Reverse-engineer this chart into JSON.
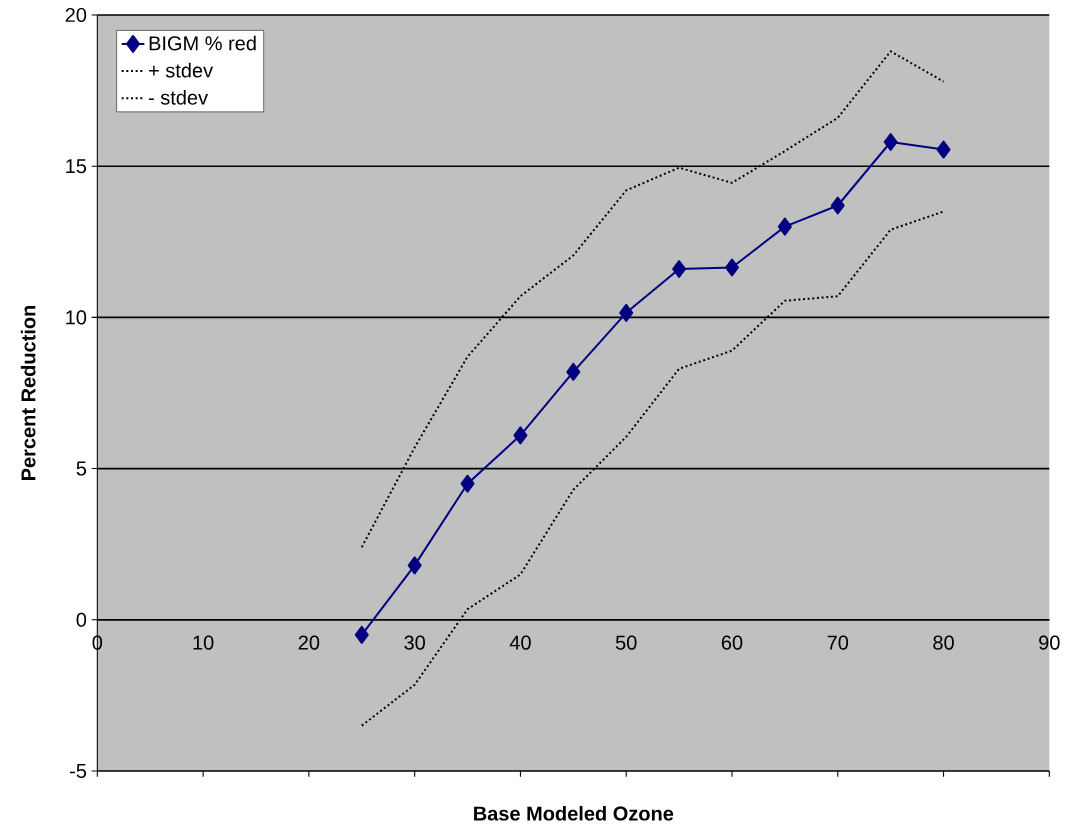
{
  "chart_data": {
    "type": "line",
    "xlabel": "Base Modeled Ozone",
    "ylabel": "Percent Reduction",
    "xlim": [
      0,
      90
    ],
    "xticks": [
      0,
      10,
      20,
      30,
      40,
      50,
      60,
      70,
      80,
      90
    ],
    "ylim": [
      -5,
      20
    ],
    "yticks": [
      -5,
      0,
      5,
      10,
      15,
      20
    ],
    "grid": "y",
    "legend": "top left",
    "series": [
      {
        "name": "BIGM % red",
        "color": "#000080",
        "marker": "diamond",
        "line_style": "solid",
        "x": [
          25,
          30,
          35,
          40,
          45,
          50,
          55,
          60,
          65,
          70,
          75,
          80
        ],
        "values": [
          -0.5,
          1.8,
          4.5,
          6.1,
          8.2,
          10.15,
          11.6,
          11.65,
          13.0,
          13.7,
          15.8,
          15.55
        ]
      },
      {
        "name": "+ stdev",
        "color": "#000000",
        "marker": "none",
        "line_style": "dotted",
        "x": [
          25,
          30,
          35,
          40,
          45,
          50,
          55,
          60,
          65,
          70,
          75,
          80
        ],
        "values": [
          2.4,
          5.7,
          8.7,
          10.7,
          12.05,
          14.2,
          14.95,
          14.45,
          15.5,
          16.6,
          18.8,
          17.8
        ]
      },
      {
        "name": "- stdev",
        "color": "#000000",
        "marker": "none",
        "line_style": "dotted",
        "x": [
          25,
          30,
          35,
          40,
          45,
          50,
          55,
          60,
          65,
          70,
          75,
          80
        ],
        "values": [
          -3.5,
          -2.15,
          0.35,
          1.5,
          4.3,
          6.05,
          8.3,
          8.9,
          10.55,
          10.7,
          12.9,
          13.5
        ]
      }
    ]
  }
}
